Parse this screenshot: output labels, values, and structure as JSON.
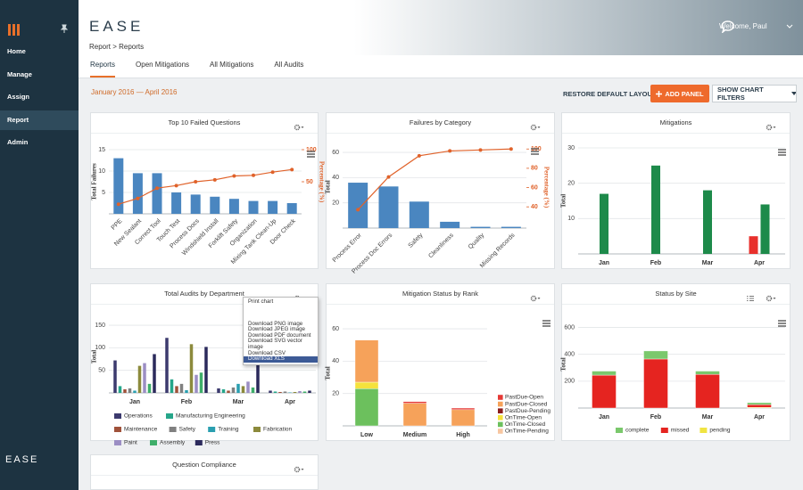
{
  "sidebar": {
    "menu": [
      "Home",
      "Manage",
      "Assign",
      "Report",
      "Admin"
    ],
    "active": 3,
    "footer_logo": "EASE"
  },
  "header": {
    "logo": "EASE",
    "breadcrumb": "Report > Reports",
    "welcome": "Welcome, Paul"
  },
  "tabs": {
    "items": [
      "Reports",
      "Open Mitigations",
      "All Mitigations",
      "All Audits"
    ],
    "active": 0
  },
  "toolbar": {
    "date_range": "January 2016 — April 2016",
    "buttons": [
      "RESTORE DEFAULT LAYOUT",
      "ADD PANEL",
      "SHOW CHART FILTERS"
    ]
  },
  "chart_data": [
    {
      "type": "combo",
      "title": "Top 10 Failed Questions",
      "ylabel": "Total Failures",
      "y2label": "Percentage (%)",
      "rotate_labels": true,
      "grid": true,
      "categories": [
        "PPE",
        "New Sealant",
        "Correct Tool",
        "Touch Test",
        "Process Docs",
        "Windshield Install",
        "Forklift Safety",
        "Organization",
        "Mixing Tank Clean-Up",
        "Door Check"
      ],
      "series": [
        {
          "type": "bar",
          "color": "#4a86c0",
          "values": [
            13,
            9.5,
            9.5,
            5,
            4.5,
            4,
            3.5,
            3,
            3,
            2.5
          ]
        },
        {
          "type": "line",
          "axis": "y2",
          "color": "#e0622a",
          "values": [
            15,
            24,
            40,
            44,
            50,
            53,
            59,
            60,
            65,
            69
          ]
        }
      ],
      "ylim": [
        0,
        15
      ],
      "yticks": [
        5,
        10,
        15
      ],
      "y2lim": [
        0,
        100
      ],
      "y2ticks": [
        50,
        100
      ]
    },
    {
      "type": "combo",
      "title": "Failures by Category",
      "ylabel": "Total",
      "y2label": "Percentage (%)",
      "rotate_labels": true,
      "grid": true,
      "categories": [
        "Process Error",
        "Process Doc Errors",
        "Safety",
        "Cleanliness",
        "Quality",
        "Missing Records"
      ],
      "series": [
        {
          "type": "bar",
          "color": "#4a86c0",
          "values": [
            36,
            33,
            21,
            5,
            1,
            1
          ]
        },
        {
          "type": "line",
          "axis": "y2",
          "color": "#e0622a",
          "values": [
            37,
            71,
            93,
            98,
            99,
            100
          ]
        }
      ],
      "ylim": [
        0,
        65
      ],
      "yticks": [
        20,
        40,
        60
      ],
      "y2lim": [
        18,
        103
      ],
      "y2ticks": [
        40,
        60,
        80,
        100
      ]
    },
    {
      "type": "bar",
      "title": "Mitigations",
      "ylabel": "Total",
      "grid": true,
      "categories": [
        "Jan",
        "Feb",
        "Mar",
        "Apr"
      ],
      "series": [
        {
          "color": "#e8302c",
          "values": [
            null,
            null,
            null,
            5
          ]
        },
        {
          "color": "#1d8a4a",
          "values": [
            17,
            25,
            18,
            14
          ]
        }
      ],
      "ylim": [
        0,
        30
      ],
      "yticks": [
        10,
        20,
        30
      ]
    },
    {
      "type": "bar",
      "title": "Total Audits by Department",
      "ylabel": "Total",
      "grid": true,
      "legend": "bottom",
      "categories": [
        "Jan",
        "Feb",
        "Mar",
        "Apr"
      ],
      "series": [
        {
          "name": "Operations",
          "color": "#3c3a6e",
          "values": [
            72,
            122,
            10,
            5
          ]
        },
        {
          "name": "Manufacturing Engineering",
          "color": "#26a68a",
          "values": [
            15,
            30,
            8,
            3
          ]
        },
        {
          "name": "Maintenance",
          "color": "#a0523a",
          "values": [
            8,
            15,
            5,
            2
          ]
        },
        {
          "name": "Safety",
          "color": "#808080",
          "values": [
            10,
            20,
            12,
            3
          ]
        },
        {
          "name": "Training",
          "color": "#2a9fb0",
          "values": [
            5,
            6,
            20,
            1
          ]
        },
        {
          "name": "Fabrication",
          "color": "#8c8a3c",
          "values": [
            60,
            108,
            15,
            2
          ]
        },
        {
          "name": "Paint",
          "color": "#9b8ec4",
          "values": [
            66,
            40,
            25,
            4
          ]
        },
        {
          "name": "Assembly",
          "color": "#3fae6a",
          "values": [
            20,
            45,
            12,
            3
          ]
        },
        {
          "name": "Press",
          "color": "#2b2a5c",
          "values": [
            86,
            102,
            85,
            5
          ]
        }
      ],
      "ylim": [
        0,
        160
      ],
      "yticks": [
        50,
        100,
        150
      ]
    },
    {
      "type": "bar",
      "stacked": true,
      "title": "Mitigation Status by Rank",
      "ylabel": "Total",
      "grid": true,
      "legend": "right",
      "categories": [
        "Low",
        "Medium",
        "High"
      ],
      "series": [
        {
          "name": "PastDue-Open",
          "color": "#e53935",
          "values": [
            0,
            1,
            1
          ]
        },
        {
          "name": "PastDue-Closed",
          "color": "#f6a25a",
          "values": [
            26,
            14,
            10
          ]
        },
        {
          "name": "PastDue-Pending",
          "color": "#8b1c1c",
          "values": [
            0,
            0,
            0
          ]
        },
        {
          "name": "OnTime-Open",
          "color": "#f5e23d",
          "values": [
            4,
            0,
            0
          ]
        },
        {
          "name": "OnTime-Closed",
          "color": "#6cc05d",
          "values": [
            23,
            0,
            0
          ]
        },
        {
          "name": "OnTime-Pending",
          "color": "#f7c6a0",
          "values": [
            0,
            0,
            0
          ]
        }
      ],
      "ylim": [
        0,
        65
      ],
      "yticks": [
        20,
        40,
        60
      ]
    },
    {
      "type": "bar",
      "stacked": true,
      "title": "Status by Site",
      "ylabel": "Total",
      "grid": true,
      "legend": "bottom",
      "categories": [
        "Jan",
        "Feb",
        "Mar",
        "Apr"
      ],
      "series": [
        {
          "name": "complete",
          "color": "#7ac86c",
          "values": [
            30,
            60,
            25,
            15
          ]
        },
        {
          "name": "missed",
          "color": "#e52420",
          "values": [
            245,
            365,
            250,
            20
          ]
        },
        {
          "name": "pending",
          "color": "#f0e442",
          "values": [
            0,
            0,
            0,
            5
          ]
        }
      ],
      "ylim": [
        0,
        650
      ],
      "yticks": [
        200,
        400,
        600
      ]
    }
  ],
  "other_panels": [
    {
      "title": "Question Compliance"
    }
  ],
  "chart_menu": {
    "items": [
      "Print chart",
      "Download PNG image",
      "Download JPEG image",
      "Download PDF document",
      "Download SVG vector image",
      "Download CSV",
      "Download XLS"
    ],
    "highlighted": 6
  }
}
